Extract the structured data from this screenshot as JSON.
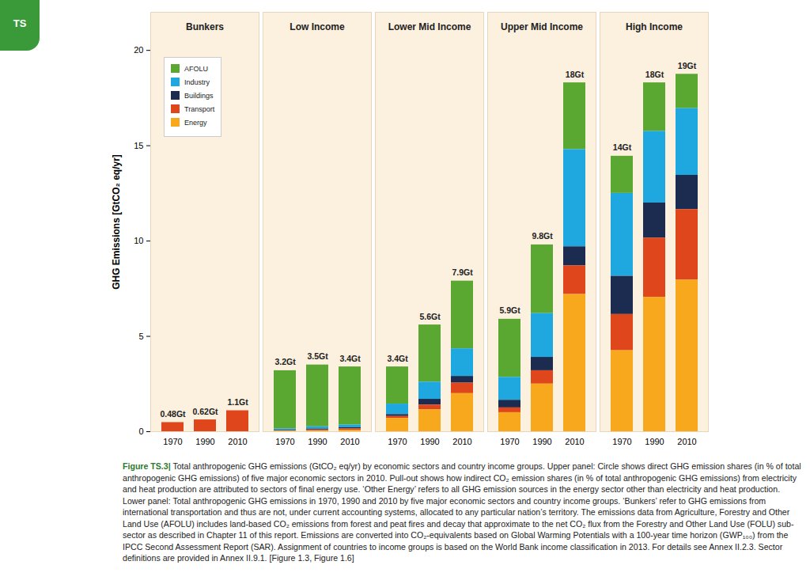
{
  "chart_data": {
    "type": "bar",
    "stacked": true,
    "data_labels": true,
    "legend": "top-left",
    "grid": false,
    "section_tab": "TS",
    "ylabel": "GHG Emissions [GtCO₂ eq/yr]",
    "ylim": [
      0,
      22
    ],
    "yticks": [
      0,
      5,
      10,
      15,
      20
    ],
    "facets": [
      "Bunkers",
      "Low Income",
      "Lower Mid Income",
      "Upper Mid Income",
      "High Income"
    ],
    "groups": [
      "Bunkers",
      "Bunkers",
      "Bunkers",
      "Low Income",
      "Low Income",
      "Low Income",
      "Lower Mid Income",
      "Lower Mid Income",
      "Lower Mid Income",
      "Upper Mid Income",
      "Upper Mid Income",
      "Upper Mid Income",
      "High Income",
      "High Income",
      "High Income"
    ],
    "categories": [
      "1970",
      "1990",
      "2010",
      "1970",
      "1990",
      "2010",
      "1970",
      "1990",
      "2010",
      "1970",
      "1990",
      "2010",
      "1970",
      "1990",
      "2010"
    ],
    "series": [
      {
        "name": "AFOLU",
        "color": "#5aa832",
        "values": [
          0,
          0,
          0,
          3.05,
          3.24,
          3.05,
          1.95,
          3.0,
          3.55,
          3.05,
          3.6,
          3.5,
          1.95,
          2.55,
          1.8
        ]
      },
      {
        "name": "Industry",
        "color": "#1ea8df",
        "values": [
          0,
          0,
          0,
          0.07,
          0.12,
          0.14,
          0.55,
          0.9,
          1.45,
          1.2,
          2.3,
          5.1,
          4.35,
          3.75,
          3.5
        ]
      },
      {
        "name": "Buildings",
        "color": "#1c2b50",
        "values": [
          0,
          0,
          0,
          0.03,
          0.05,
          0.06,
          0.1,
          0.3,
          0.35,
          0.4,
          0.7,
          1.0,
          2.0,
          1.85,
          1.8
        ]
      },
      {
        "name": "Transport",
        "color": "#e0461b",
        "values": [
          0.48,
          0.62,
          1.1,
          0.02,
          0.04,
          0.07,
          0.1,
          0.25,
          0.55,
          0.25,
          0.7,
          1.5,
          1.9,
          3.1,
          3.7
        ]
      },
      {
        "name": "Energy",
        "color": "#f8a81c",
        "values": [
          0,
          0,
          0,
          0.03,
          0.05,
          0.08,
          0.7,
          1.15,
          2.0,
          1.0,
          2.5,
          7.2,
          4.25,
          7.05,
          7.95
        ]
      }
    ],
    "totals": [
      0.48,
      0.62,
      1.1,
      3.2,
      3.5,
      3.4,
      3.4,
      5.6,
      7.9,
      5.9,
      9.8,
      18.3,
      14.45,
      18.3,
      18.75
    ],
    "total_labels": [
      "0.48Gt",
      "0.62Gt",
      "1.1Gt",
      "3.2Gt",
      "3.5Gt",
      "3.4Gt",
      "3.4Gt",
      "5.6Gt",
      "7.9Gt",
      "5.9Gt",
      "9.8Gt",
      "18Gt",
      "14Gt",
      "18Gt",
      "19Gt"
    ],
    "caption_label": "Figure TS.3|",
    "caption": " Total anthropogenic GHG emissions (GtCO₂ eq/yr) by economic sectors and country income groups. Upper panel: Circle shows direct GHG emission shares (in % of total anthropogenic GHG emissions) of five major economic sectors in 2010. Pull-out shows how indirect CO₂ emission shares (in % of total anthropogenic GHG emissions) from electricity and heat production are attributed to sectors of final energy use. ‘Other Energy’ refers to all GHG emission sources in the energy sector other than electricity and heat production. Lower panel: Total anthropogenic GHG emissions in 1970, 1990 and 2010 by five major economic sectors and country income groups. ‘Bunkers’ refer to GHG emissions from international transportation and thus are not, under current accounting systems, allocated to any particular nation’s territory. The emissions data from Agriculture, Forestry and Other Land Use (AFOLU) includes land-based CO₂ emissions from forest and peat fires and decay that approximate to the net CO₂ flux from the Forestry and Other Land Use (FOLU) sub-sector as described in Chapter 11 of this report. Emissions are converted into CO₂-equivalents based on Global Warming Potentials with a 100-year time horizon (GWP₁₀₀) from the IPCC Second Assessment Report (SAR). Assignment of countries to income groups is based on the World Bank income classification in 2013. For details see Annex II.2.3. Sector definitions are provided in Annex II.9.1. [Figure 1.3, Figure 1.6]"
  }
}
